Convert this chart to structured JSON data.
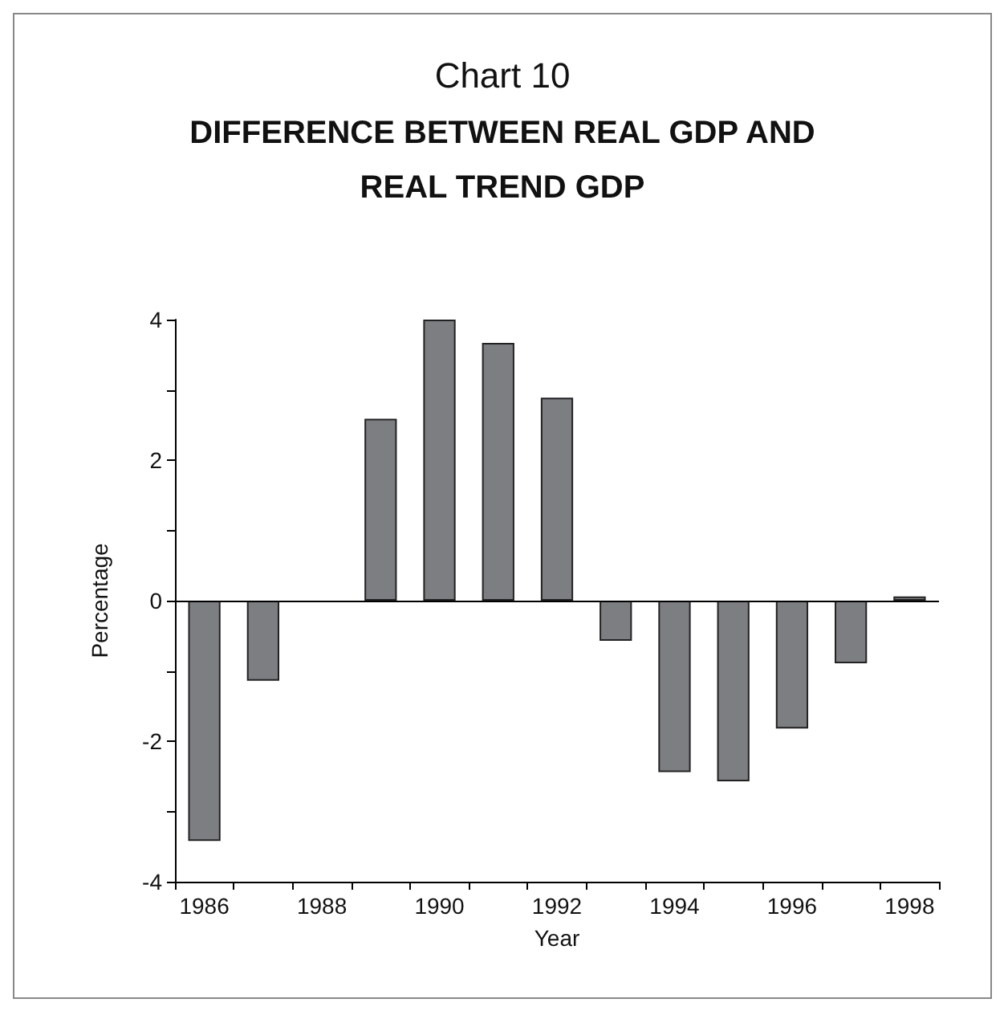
{
  "chart_data": {
    "type": "bar",
    "title": "Chart 10",
    "subtitle": "DIFFERENCE BETWEEN REAL GDP AND\nREAL TREND GDP",
    "xlabel": "Year",
    "ylabel": "Percentage",
    "categories": [
      "1986",
      null,
      "1988",
      null,
      "1990",
      null,
      "1992",
      null,
      "1994",
      null,
      "1996",
      null,
      "1998"
    ],
    "values": [
      -3.42,
      -1.14,
      0,
      2.59,
      4.0,
      3.67,
      2.89,
      -0.57,
      -2.44,
      -2.57,
      -1.82,
      -0.89,
      0.06
    ],
    "color": "#7d7e82",
    "ylim": [
      -4,
      4
    ],
    "yticks": [
      -4,
      {
        "value": -3,
        "label": null
      },
      -2,
      {
        "value": -1,
        "label": null
      },
      0,
      {
        "value": 1,
        "label": null
      },
      2,
      {
        "value": 3,
        "label": null
      },
      4
    ],
    "ref_lines": [
      {
        "axis": "y",
        "value": 0,
        "color": "#000000"
      }
    ],
    "grid": false
  }
}
